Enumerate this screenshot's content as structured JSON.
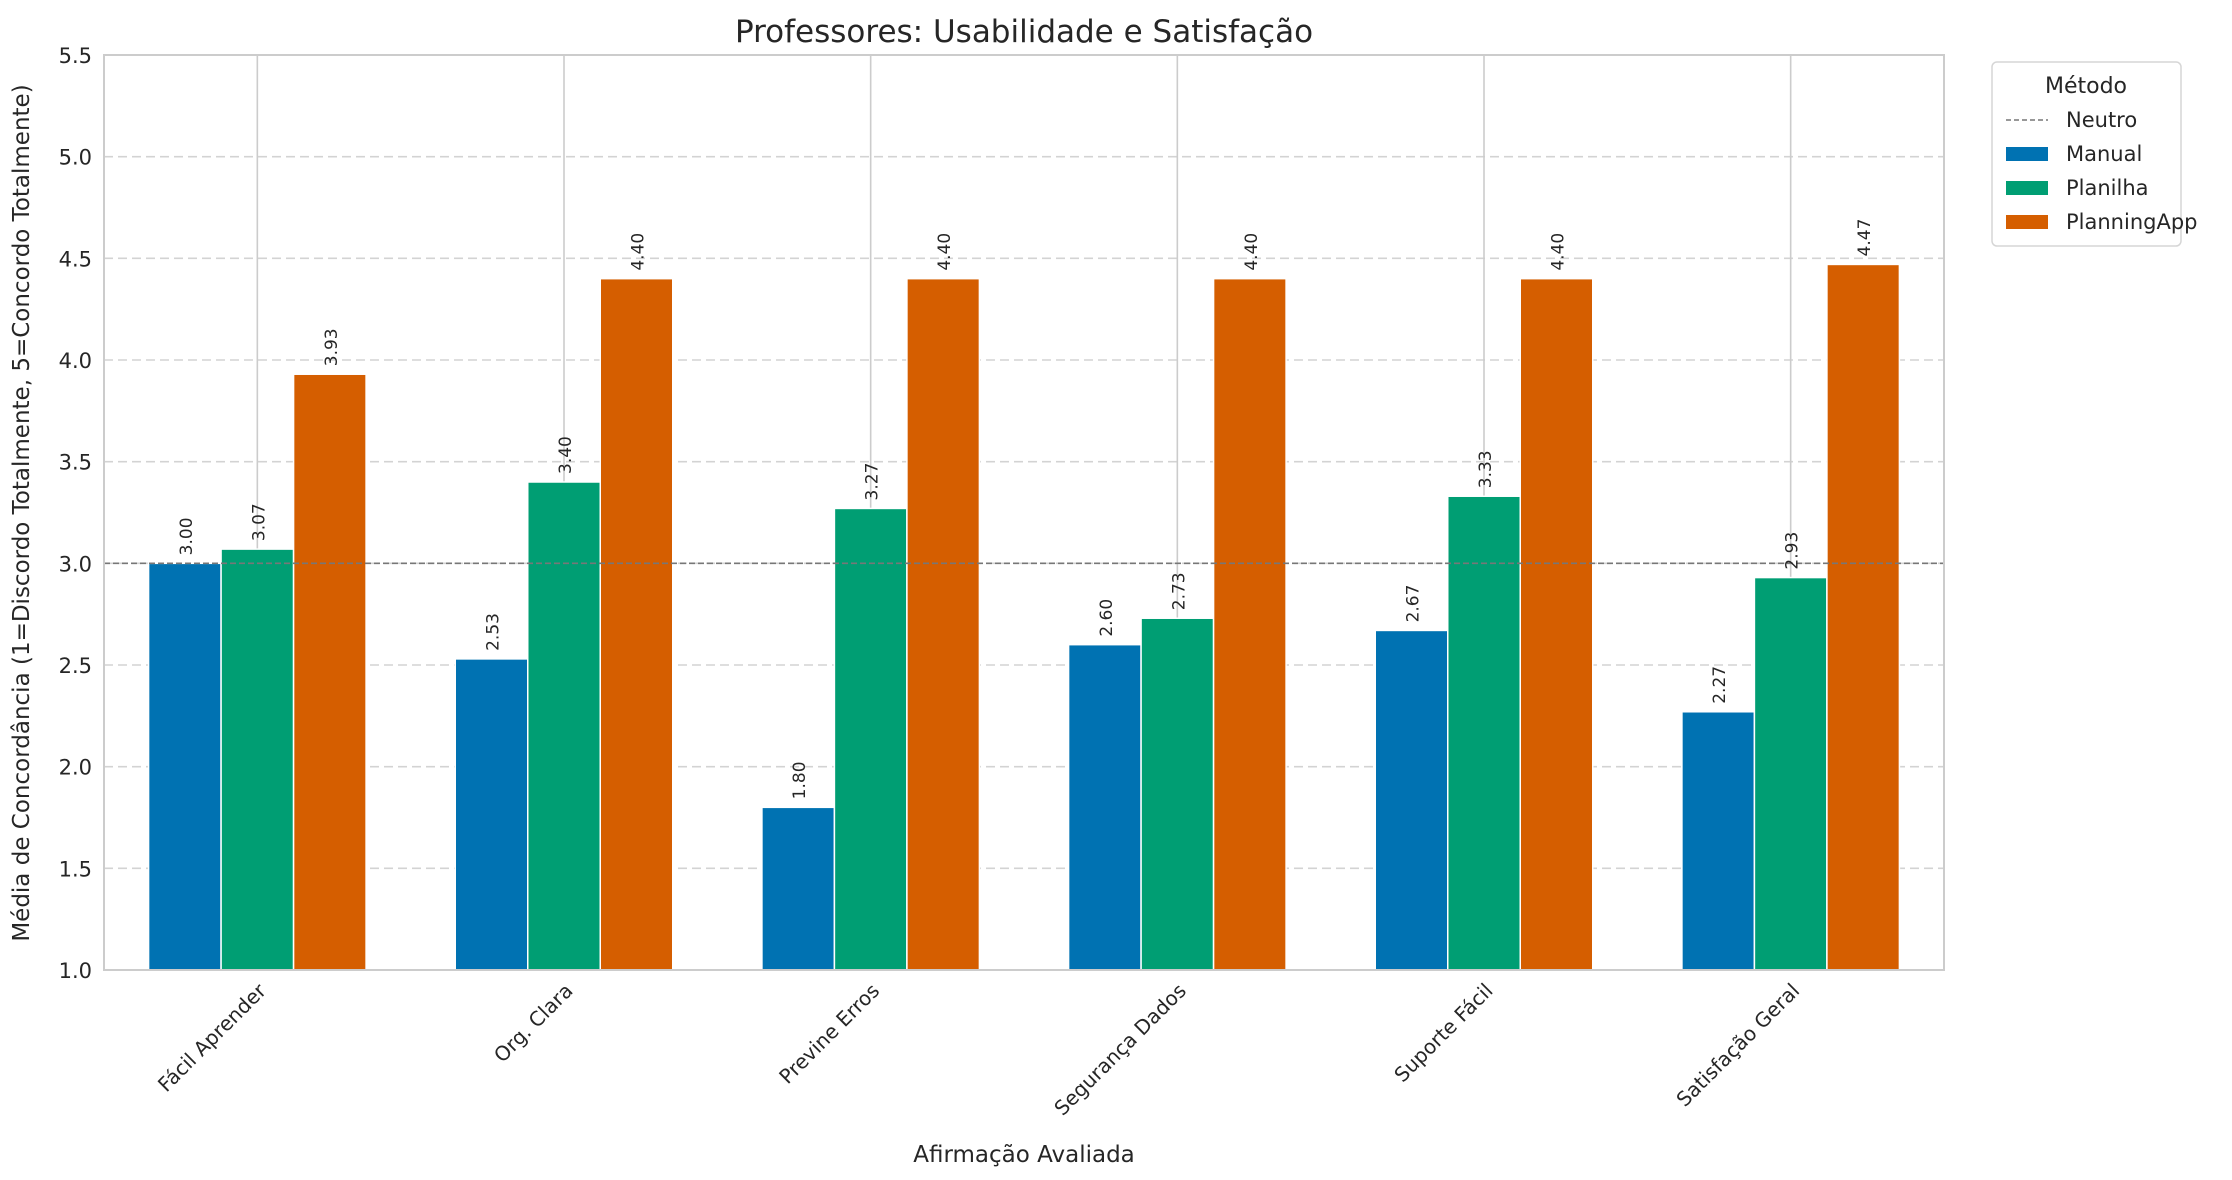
{
  "chart_data": {
    "type": "bar",
    "title": "Professores: Usabilidade e Satisfação",
    "xlabel": "Afirmação Avaliada",
    "ylabel": "Média de Concordância (1=Discordo Totalmente, 5=Concordo Totalmente)",
    "ylim": [
      1.0,
      5.5
    ],
    "yticks": [
      "1.0",
      "1.5",
      "2.0",
      "2.5",
      "3.0",
      "3.5",
      "4.0",
      "4.5",
      "5.0",
      "5.5"
    ],
    "grid": true,
    "categories": [
      "Fácil Aprender",
      "Org. Clara",
      "Previne Erros",
      "Segurança Dados",
      "Suporte Fácil",
      "Satisfação Geral"
    ],
    "series": [
      {
        "name": "Manual",
        "color": "#0072b2",
        "values": [
          3.0,
          2.53,
          1.8,
          2.6,
          2.67,
          2.27
        ],
        "labels": [
          "3.00",
          "2.53",
          "1.80",
          "2.60",
          "2.67",
          "2.27"
        ]
      },
      {
        "name": "Planilha",
        "color": "#009e73",
        "values": [
          3.07,
          3.4,
          3.27,
          2.73,
          3.33,
          2.93
        ],
        "labels": [
          "3.07",
          "3.40",
          "3.27",
          "2.73",
          "3.33",
          "2.93"
        ]
      },
      {
        "name": "PlanningApp",
        "color": "#d55e00",
        "values": [
          3.93,
          4.4,
          4.4,
          4.4,
          4.4,
          4.47
        ],
        "labels": [
          "3.93",
          "4.40",
          "4.40",
          "4.40",
          "4.40",
          "4.47"
        ]
      }
    ],
    "reference_line": {
      "name": "Neutro",
      "value": 3.0,
      "color": "#777777",
      "style": "dashed"
    },
    "legend": {
      "title": "Método",
      "placement": "outside-top-right"
    }
  }
}
